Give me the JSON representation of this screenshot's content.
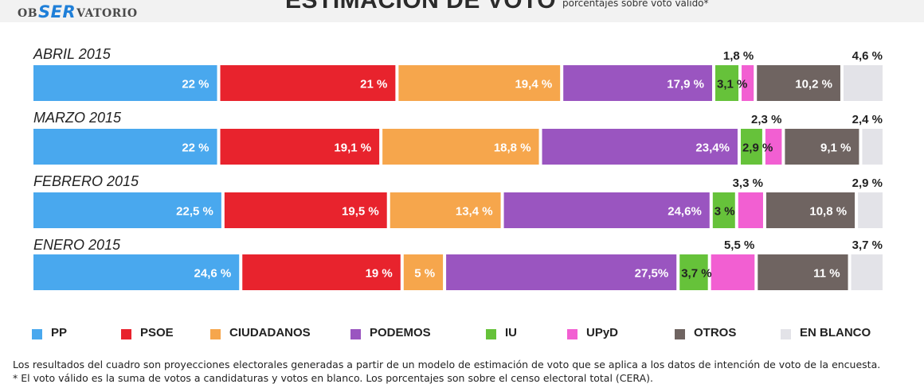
{
  "header": {
    "logo_prefix": "OB",
    "logo_brand": "SER",
    "logo_suffix": "VATORIO",
    "title": "ESTIMACIÓN DE VOTO",
    "subtitle": "porcentajes sobre voto válido*"
  },
  "chart_data": {
    "type": "bar",
    "orientation": "horizontal-stacked",
    "title": "ESTIMACIÓN DE VOTO",
    "subtitle": "porcentajes sobre voto válido*",
    "categories": [
      "ABRIL 2015",
      "MARZO 2015",
      "FEBRERO 2015",
      "ENERO 2015"
    ],
    "series": [
      {
        "name": "PP",
        "color": "#49a8ee",
        "values": [
          22,
          22,
          22.5,
          24.6
        ],
        "labels": [
          "22 %",
          "22 %",
          "22,5 %",
          "24,6 %"
        ]
      },
      {
        "name": "PSOE",
        "color": "#e8232d",
        "values": [
          21,
          19.1,
          19.5,
          19
        ],
        "labels": [
          "21 %",
          "19,1 %",
          "19,5 %",
          "19 %"
        ]
      },
      {
        "name": "CIUDADANOS",
        "color": "#f6a64c",
        "values": [
          19.4,
          18.8,
          13.4,
          5
        ],
        "labels": [
          "19,4 %",
          "18,8 %",
          "13,4 %",
          "5 %"
        ]
      },
      {
        "name": "PODEMOS",
        "color": "#9a55c0",
        "values": [
          17.9,
          23.4,
          24.6,
          27.5
        ],
        "labels": [
          "17,9 %",
          "23,4%",
          "24,6%",
          "27,5%"
        ]
      },
      {
        "name": "IU",
        "color": "#66c23a",
        "values": [
          3.1,
          2.9,
          3,
          3.7
        ],
        "labels": [
          "3,1 %",
          "2,9 %",
          "3 %",
          "3,7 %"
        ]
      },
      {
        "name": "UPyD",
        "color": "#f25fd2",
        "values": [
          1.8,
          2.3,
          3.3,
          5.5
        ],
        "labels": [
          "1,8 %",
          "2,3 %",
          "3,3 %",
          "5,5 %"
        ]
      },
      {
        "name": "OTROS",
        "color": "#6f6461",
        "values": [
          10.2,
          9.1,
          10.8,
          11
        ],
        "labels": [
          "10,2 %",
          "9,1 %",
          "10,8 %",
          "11 %"
        ]
      },
      {
        "name": "EN BLANCO",
        "color": "#e3e3e8",
        "values": [
          4.6,
          2.4,
          2.9,
          3.7
        ],
        "labels": [
          "4,6 %",
          "2,4 %",
          "2,9 %",
          "3,7 %"
        ]
      }
    ],
    "legend_position": "bottom"
  },
  "legend": {
    "items": [
      {
        "label": "PP",
        "color": "#49a8ee"
      },
      {
        "label": "PSOE",
        "color": "#e8232d"
      },
      {
        "label": "CIUDADANOS",
        "color": "#f6a64c"
      },
      {
        "label": "PODEMOS",
        "color": "#9a55c0"
      },
      {
        "label": "IU",
        "color": "#66c23a"
      },
      {
        "label": "UPyD",
        "color": "#f25fd2"
      },
      {
        "label": "OTROS",
        "color": "#6f6461"
      },
      {
        "label": "EN BLANCO",
        "color": "#e3e3e8"
      }
    ]
  },
  "footnotes": {
    "line1": "Los resultados del cuadro son proyecciones electorales generadas a partir de un modelo de estimación de voto que se aplica a los datos de intención de voto de la encuesta.",
    "line2": "* El voto válido es la suma de votos a candidaturas y votos en blanco. Los porcentajes son sobre el censo electoral total (CERA)."
  }
}
